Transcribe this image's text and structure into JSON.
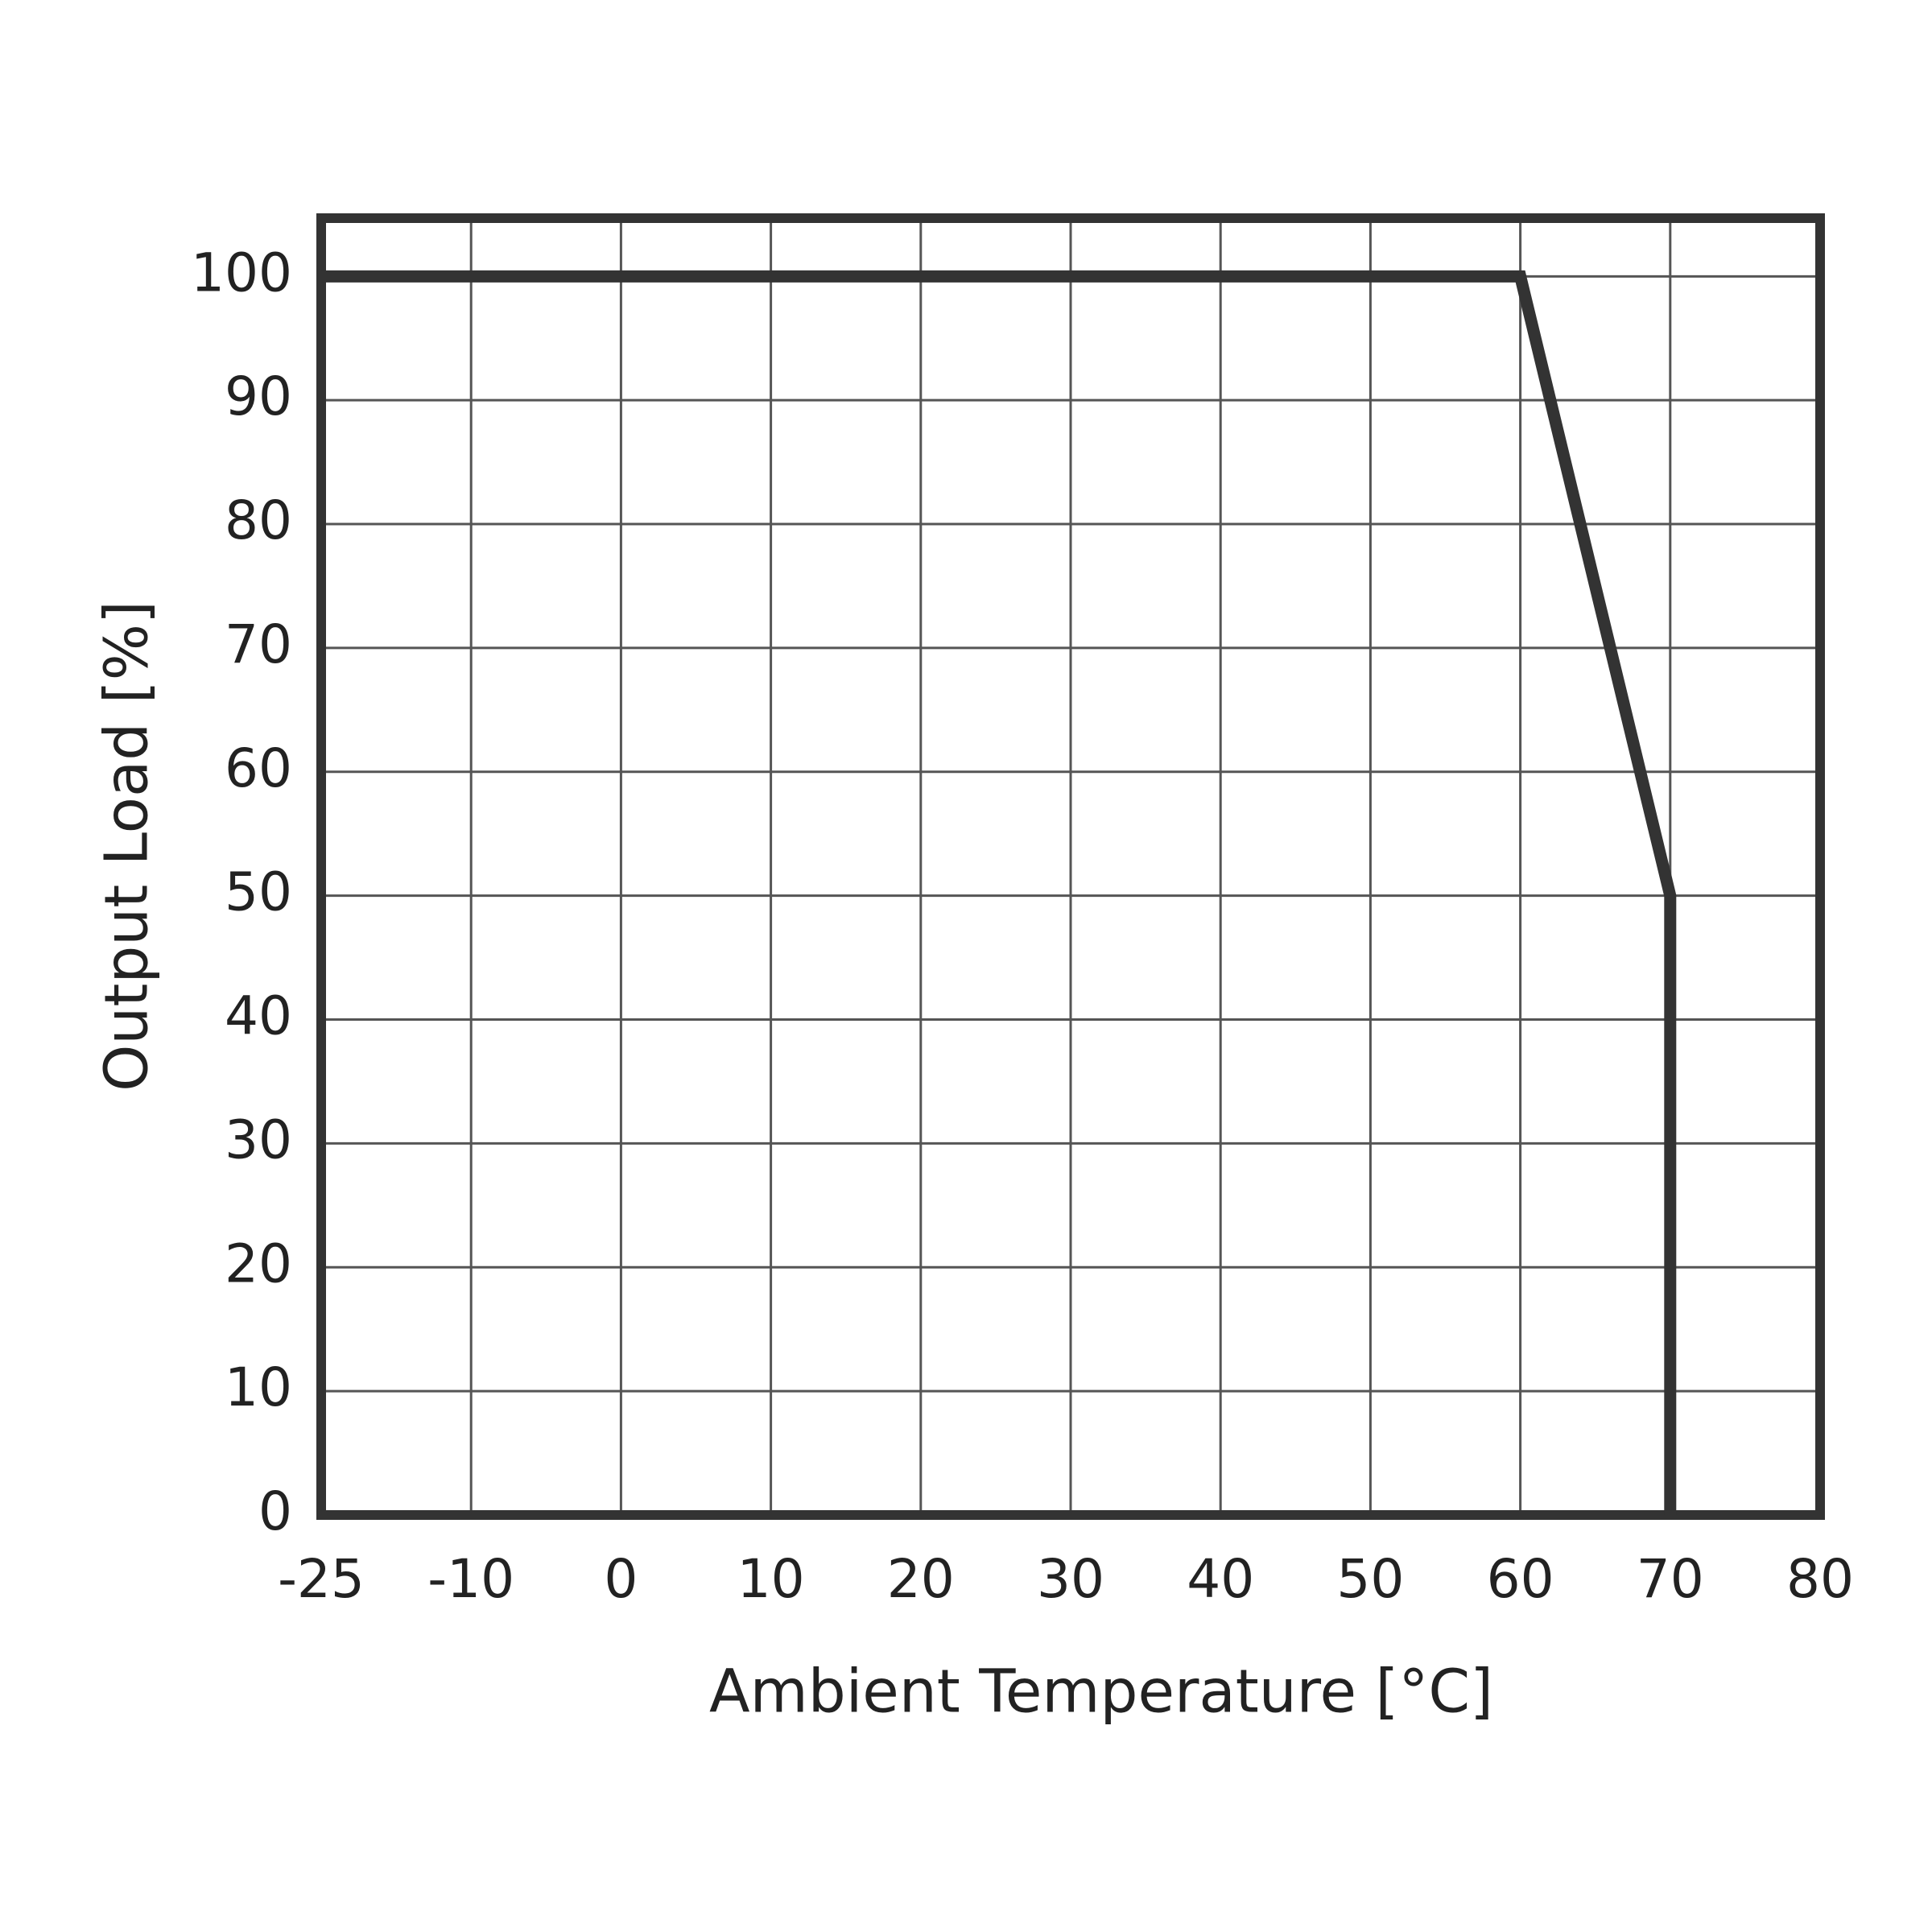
{
  "chart_data": {
    "type": "line",
    "x_label": "Ambient Temperature [°C]",
    "y_label": "Output Load [%]",
    "x": [
      -25,
      60,
      70,
      70
    ],
    "series": [
      {
        "values": [
          100,
          100,
          50,
          0
        ],
        "color": "#333333"
      }
    ],
    "xlim": [
      -25,
      80
    ],
    "xticks": [
      -25,
      -10,
      0,
      10,
      20,
      30,
      40,
      50,
      60,
      70,
      80
    ],
    "ylim": [
      0,
      104.7
    ],
    "yticks": [
      0,
      10,
      20,
      30,
      40,
      50,
      60,
      70,
      80,
      90,
      100
    ],
    "grid": true
  }
}
